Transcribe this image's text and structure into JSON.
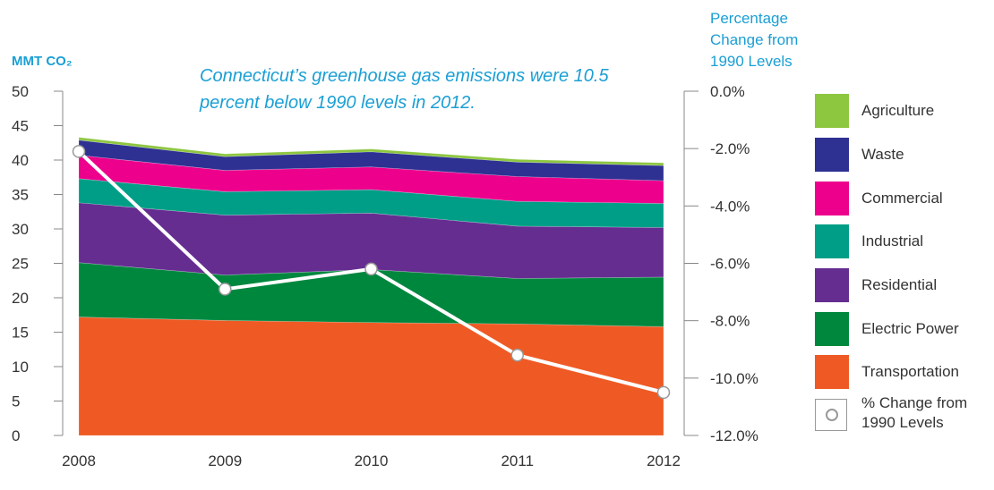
{
  "chart_data": {
    "type": "area",
    "title": "",
    "headline": "Connecticut’s greenhouse gas emissions were 10.5 percent below 1990 levels in 2012.",
    "ylabel_left": "MMT CO₂",
    "ylabel_right": "Percentage Change from 1990 Levels",
    "categories": [
      "2008",
      "2009",
      "2010",
      "2011",
      "2012"
    ],
    "ylim_left": [
      0,
      50
    ],
    "yticks_left": [
      "0",
      "5",
      "10",
      "15",
      "20",
      "25",
      "30",
      "35",
      "40",
      "45",
      "50"
    ],
    "ylim_right": [
      -12.0,
      0.0
    ],
    "yticks_right": [
      "0.0%",
      "-2.0%",
      "-4.0%",
      "-6.0%",
      "-8.0%",
      "-10.0%",
      "-12.0%"
    ],
    "stacked": true,
    "series": [
      {
        "name": "Transportation",
        "color": "#ef5a24",
        "values": [
          17.2,
          16.7,
          16.4,
          16.2,
          15.8
        ]
      },
      {
        "name": "Electric Power",
        "color": "#00873e",
        "values": [
          7.9,
          6.6,
          7.7,
          6.6,
          7.2
        ]
      },
      {
        "name": "Residential",
        "color": "#662d91",
        "values": [
          8.7,
          8.7,
          8.2,
          7.6,
          7.2
        ]
      },
      {
        "name": "Industrial",
        "color": "#009e86",
        "values": [
          3.5,
          3.4,
          3.4,
          3.6,
          3.5
        ]
      },
      {
        "name": "Commercial",
        "color": "#ec008c",
        "values": [
          3.4,
          3.1,
          3.3,
          3.6,
          3.3
        ]
      },
      {
        "name": "Waste",
        "color": "#2e3192",
        "values": [
          2.2,
          2.0,
          2.2,
          2.1,
          2.2
        ]
      },
      {
        "name": "Agriculture",
        "color": "#8dc63f",
        "values": [
          0.4,
          0.4,
          0.4,
          0.4,
          0.4
        ]
      }
    ],
    "line": {
      "name": "% Change from 1990 Levels",
      "color": "#ffffff",
      "values": [
        -2.1,
        -6.9,
        -6.2,
        -9.2,
        -10.5
      ]
    },
    "legend": [
      {
        "label": "Agriculture",
        "color": "#8dc63f"
      },
      {
        "label": "Waste",
        "color": "#2e3192"
      },
      {
        "label": "Commercial",
        "color": "#ec008c"
      },
      {
        "label": "Industrial",
        "color": "#009e86"
      },
      {
        "label": "Residential",
        "color": "#662d91"
      },
      {
        "label": "Electric Power",
        "color": "#00873e"
      },
      {
        "label": "Transportation",
        "color": "#ef5a24"
      },
      {
        "label": "% Change from 1990 Levels",
        "color": "#ffffff",
        "marker": true
      }
    ],
    "legend_position": "right",
    "grid": false
  }
}
